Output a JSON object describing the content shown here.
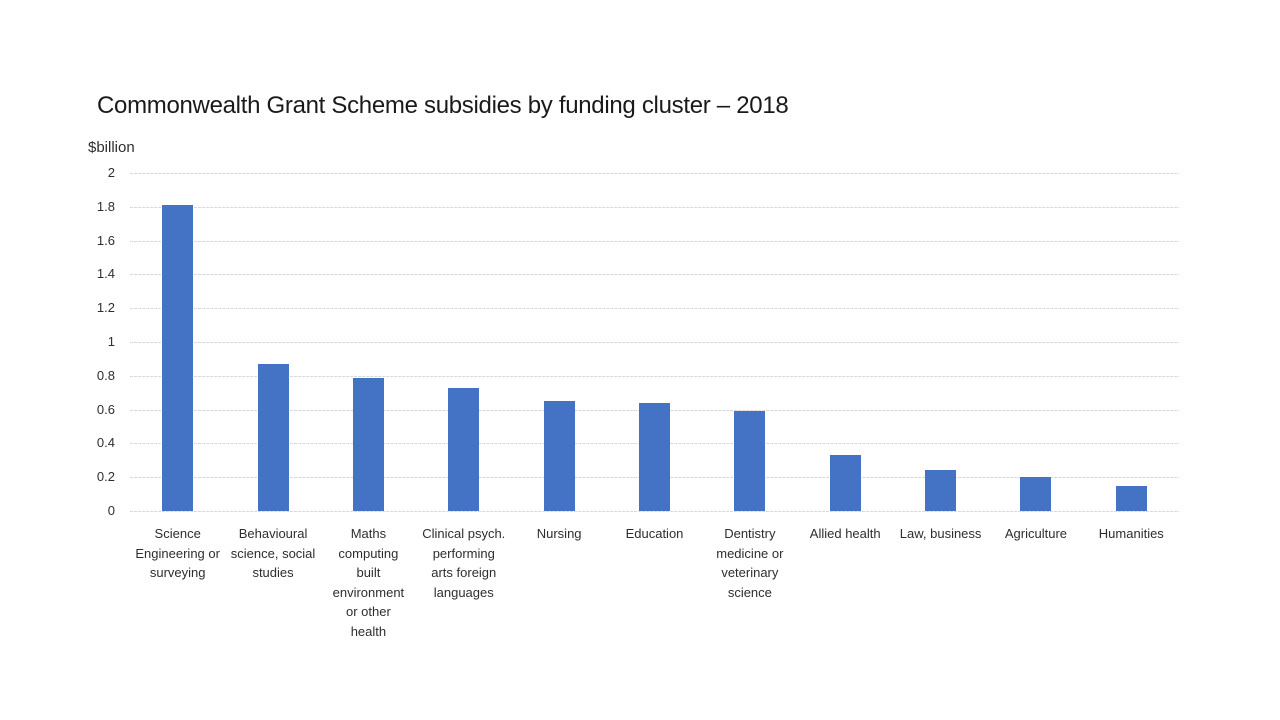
{
  "chart_data": {
    "type": "bar",
    "title": "Commonwealth Grant Scheme subsidies by funding cluster – 2018",
    "xlabel": "",
    "ylabel": "$billion",
    "categories": [
      "Science Engineering or surveying",
      "Behavioural science, social studies",
      "Maths computing built environment or other health",
      "Clinical psych. performing arts foreign languages",
      "Nursing",
      "Education",
      "Dentistry medicine or veterinary science",
      "Allied health",
      "Law, business",
      "Agriculture",
      "Humanities"
    ],
    "category_label_lines": [
      [
        "Science",
        "Engineering or",
        "surveying"
      ],
      [
        "Behavioural",
        "science, social",
        "studies"
      ],
      [
        "Maths",
        "computing",
        "built",
        "environment",
        "or other",
        "health"
      ],
      [
        "Clinical psych.",
        "performing",
        "arts foreign",
        "languages"
      ],
      [
        "Nursing"
      ],
      [
        "Education"
      ],
      [
        "Dentistry",
        "medicine or",
        "veterinary",
        "science"
      ],
      [
        "Allied health"
      ],
      [
        "Law, business"
      ],
      [
        "Agriculture"
      ],
      [
        "Humanities"
      ]
    ],
    "values": [
      1.81,
      0.87,
      0.79,
      0.73,
      0.65,
      0.64,
      0.59,
      0.33,
      0.24,
      0.2,
      0.15
    ],
    "ylim": [
      0,
      2
    ],
    "yticks": [
      0,
      0.2,
      0.4,
      0.6,
      0.8,
      1,
      1.2,
      1.4,
      1.6,
      1.8,
      2
    ],
    "grid": true,
    "legend": false,
    "bar_color": "#4472C4",
    "gridline_color": "#d9d9d9"
  }
}
